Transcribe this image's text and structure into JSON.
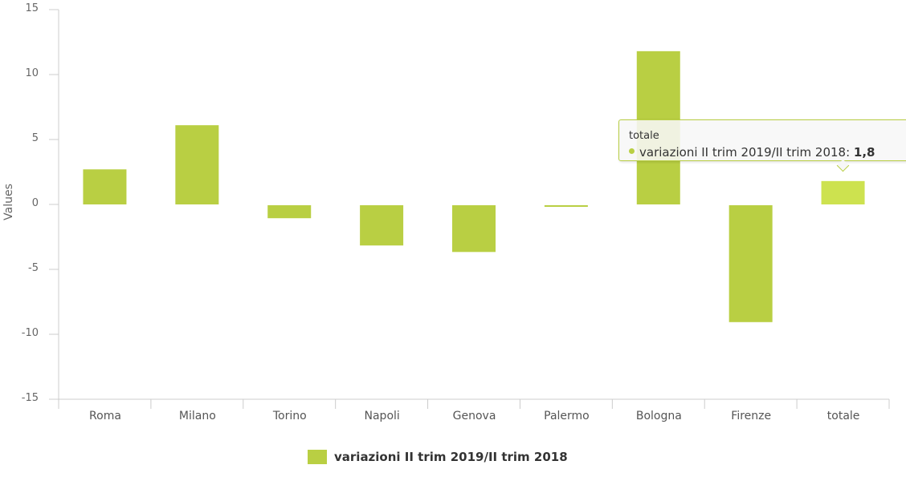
{
  "chart_data": {
    "type": "bar",
    "title": "",
    "xlabel": "",
    "ylabel": "Values",
    "ylim": [
      -15,
      15
    ],
    "yticks": [
      15,
      10,
      5,
      0,
      -5,
      -10,
      -15
    ],
    "categories": [
      "Roma",
      "Milano",
      "Torino",
      "Napoli",
      "Genova",
      "Palermo",
      "Bologna",
      "Firenze",
      "totale"
    ],
    "series": [
      {
        "name": "variazioni II trim 2019/II trim 2018",
        "color": "#b9cf43",
        "values": [
          2.7,
          6.1,
          -1.0,
          -3.1,
          -3.6,
          -0.1,
          11.8,
          -9.0,
          1.8
        ]
      }
    ],
    "grid": false,
    "legend_position": "bottom-center",
    "hover_color": "#cde24f"
  },
  "tooltip": {
    "title": "totale",
    "series_label": "variazioni II trim 2019/II trim 2018: ",
    "value": "1,8"
  },
  "legend": {
    "label": "variazioni II trim 2019/II trim 2018"
  },
  "axis": {
    "ylabel": "Values"
  }
}
